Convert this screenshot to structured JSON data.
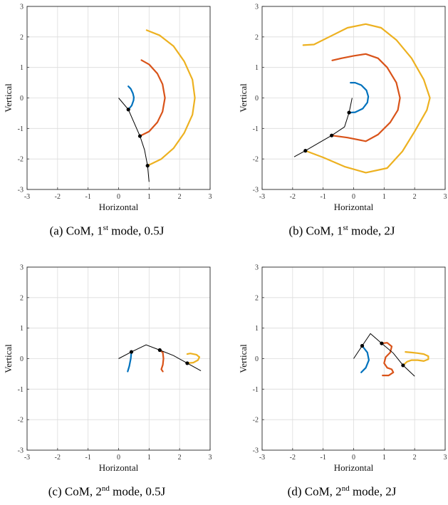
{
  "chart_data": [
    {
      "type": "line",
      "xlabel": "Horizontal",
      "ylabel": "Vertical",
      "xlim": [
        -3,
        3
      ],
      "ylim": [
        -3,
        3
      ],
      "xticks": [
        "-3",
        "-2",
        "-1",
        "0",
        "1",
        "2",
        "3"
      ],
      "yticks": [
        "-3",
        "-2",
        "-1",
        "0",
        "1",
        "2",
        "3"
      ],
      "grid": true,
      "caption": {
        "prefix": "(a) CoM, 1",
        "sup": "st",
        "suffix": " mode, 0.5J"
      },
      "pendulum": {
        "x": [
          0,
          0.32,
          0.7,
          0.85,
          0.95,
          1.0
        ],
        "y": [
          0,
          -0.38,
          -1.25,
          -1.7,
          -2.22,
          -2.75
        ]
      },
      "joints": {
        "x": [
          0.32,
          0.7,
          0.95
        ],
        "y": [
          -0.38,
          -1.25,
          -2.22
        ]
      },
      "series": [
        {
          "color": "#0072BD",
          "x": [
            0.32,
            0.43,
            0.49,
            0.5,
            0.47,
            0.4,
            0.32
          ],
          "y": [
            -0.38,
            -0.25,
            -0.08,
            0.02,
            0.15,
            0.3,
            0.38
          ]
        },
        {
          "color": "#D95319",
          "x": [
            0.7,
            1.0,
            1.27,
            1.44,
            1.52,
            1.44,
            1.27,
            1.0,
            0.75
          ],
          "y": [
            -1.25,
            -1.1,
            -0.8,
            -0.45,
            0.0,
            0.45,
            0.8,
            1.1,
            1.24
          ]
        },
        {
          "color": "#EDB120",
          "x": [
            0.95,
            1.4,
            1.8,
            2.15,
            2.42,
            2.5,
            2.42,
            2.15,
            1.8,
            1.35,
            0.92
          ],
          "y": [
            -2.22,
            -2.0,
            -1.65,
            -1.15,
            -0.55,
            0.0,
            0.6,
            1.2,
            1.7,
            2.05,
            2.22
          ]
        }
      ]
    },
    {
      "type": "line",
      "xlabel": "Horizontal",
      "ylabel": "Vertical",
      "xlim": [
        -3,
        3
      ],
      "ylim": [
        -3,
        3
      ],
      "xticks": [
        "-3",
        "-2",
        "-1",
        "0",
        "1",
        "2",
        "3"
      ],
      "yticks": [
        "-3",
        "-2",
        "-1",
        "0",
        "1",
        "2",
        "3"
      ],
      "grid": true,
      "caption": {
        "prefix": "(b) CoM, 1",
        "sup": "st",
        "suffix": " mode, 2J"
      },
      "pendulum": {
        "x": [
          -0.05,
          -0.15,
          -0.3,
          -0.72,
          -1.1,
          -1.58,
          -1.95
        ],
        "y": [
          0.0,
          -0.48,
          -0.95,
          -1.23,
          -1.45,
          -1.73,
          -1.93
        ]
      },
      "joints": {
        "x": [
          -0.15,
          -0.72,
          -1.58
        ],
        "y": [
          -0.48,
          -1.23,
          -1.73
        ]
      },
      "series": [
        {
          "color": "#0072BD",
          "x": [
            -0.15,
            0.05,
            0.3,
            0.45,
            0.48,
            0.42,
            0.25,
            0.05,
            -0.1
          ],
          "y": [
            -0.48,
            -0.47,
            -0.35,
            -0.15,
            0.05,
            0.25,
            0.42,
            0.5,
            0.5
          ]
        },
        {
          "color": "#D95319",
          "x": [
            -0.72,
            -0.2,
            0.4,
            0.8,
            1.2,
            1.45,
            1.52,
            1.4,
            1.1,
            0.8,
            0.4,
            0.0,
            -0.4,
            -0.7
          ],
          "y": [
            -1.23,
            -1.3,
            -1.42,
            -1.2,
            -0.8,
            -0.4,
            0.0,
            0.5,
            1.0,
            1.3,
            1.44,
            1.38,
            1.3,
            1.23
          ]
        },
        {
          "color": "#EDB120",
          "x": [
            -1.58,
            -1.0,
            -0.3,
            0.4,
            1.1,
            1.6,
            2.0,
            2.4,
            2.5,
            2.3,
            1.9,
            1.4,
            0.9,
            0.4,
            -0.2,
            -0.8,
            -1.3,
            -1.65
          ],
          "y": [
            -1.73,
            -1.95,
            -2.25,
            -2.45,
            -2.3,
            -1.75,
            -1.1,
            -0.4,
            0.0,
            0.6,
            1.3,
            1.9,
            2.3,
            2.42,
            2.3,
            2.0,
            1.75,
            1.73
          ]
        }
      ]
    },
    {
      "type": "line",
      "xlabel": "Horizontal",
      "ylabel": "Vertical",
      "xlim": [
        -3,
        3
      ],
      "ylim": [
        -3,
        3
      ],
      "xticks": [
        "-3",
        "-2",
        "-1",
        "0",
        "1",
        "2",
        "3"
      ],
      "yticks": [
        "-3",
        "-2",
        "-1",
        "0",
        "1",
        "2",
        "3"
      ],
      "grid": true,
      "caption": {
        "prefix": "(c) CoM, 2",
        "sup": "nd",
        "suffix": " mode, 0.5J"
      },
      "pendulum": {
        "x": [
          0,
          0.42,
          0.9,
          1.35,
          1.8,
          2.25,
          2.7
        ],
        "y": [
          0,
          0.22,
          0.45,
          0.28,
          0.1,
          -0.15,
          -0.4
        ]
      },
      "joints": {
        "x": [
          0.42,
          1.35,
          2.25
        ],
        "y": [
          0.22,
          0.28,
          -0.15
        ]
      },
      "series": [
        {
          "color": "#0072BD",
          "x": [
            0.42,
            0.4,
            0.35,
            0.3
          ],
          "y": [
            0.22,
            0.0,
            -0.25,
            -0.42
          ]
        },
        {
          "color": "#D95319",
          "x": [
            1.35,
            1.45,
            1.47,
            1.45,
            1.4,
            1.45
          ],
          "y": [
            0.28,
            0.2,
            0.0,
            -0.2,
            -0.35,
            -0.42
          ]
        },
        {
          "color": "#EDB120",
          "x": [
            2.25,
            2.45,
            2.6,
            2.65,
            2.55,
            2.35,
            2.25
          ],
          "y": [
            -0.15,
            -0.13,
            -0.05,
            0.05,
            0.13,
            0.17,
            0.15
          ]
        }
      ]
    },
    {
      "type": "line",
      "xlabel": "Horizontal",
      "ylabel": "Vertical",
      "xlim": [
        -3,
        3
      ],
      "ylim": [
        -3,
        3
      ],
      "xticks": [
        "-3",
        "-2",
        "-1",
        "0",
        "1",
        "2",
        "3"
      ],
      "yticks": [
        "-3",
        "-2",
        "-1",
        "0",
        "1",
        "2",
        "3"
      ],
      "grid": true,
      "caption": {
        "prefix": "(d) CoM, 2",
        "sup": "nd",
        "suffix": " mode, 2J"
      },
      "pendulum": {
        "x": [
          0,
          0.28,
          0.55,
          0.92,
          1.3,
          1.62,
          2.0
        ],
        "y": [
          0,
          0.42,
          0.82,
          0.5,
          0.18,
          -0.22,
          -0.58
        ]
      },
      "joints": {
        "x": [
          0.28,
          0.92,
          1.62
        ],
        "y": [
          0.42,
          0.5,
          -0.22
        ]
      },
      "series": [
        {
          "color": "#0072BD",
          "x": [
            0.28,
            0.45,
            0.5,
            0.4,
            0.25
          ],
          "y": [
            0.42,
            0.2,
            -0.05,
            -0.3,
            -0.45
          ]
        },
        {
          "color": "#D95319",
          "x": [
            0.92,
            1.1,
            1.25,
            1.2,
            1.05,
            1.0,
            1.1,
            1.25,
            1.3,
            1.15,
            0.95
          ],
          "y": [
            0.5,
            0.52,
            0.4,
            0.2,
            0.05,
            -0.15,
            -0.3,
            -0.35,
            -0.45,
            -0.55,
            -0.55
          ]
        },
        {
          "color": "#EDB120",
          "x": [
            1.62,
            1.75,
            1.9,
            2.1,
            2.3,
            2.45,
            2.45,
            2.3,
            2.1,
            1.9,
            1.7
          ],
          "y": [
            -0.22,
            -0.1,
            -0.05,
            -0.05,
            -0.08,
            -0.02,
            0.08,
            0.15,
            0.18,
            0.2,
            0.22
          ]
        }
      ]
    }
  ]
}
